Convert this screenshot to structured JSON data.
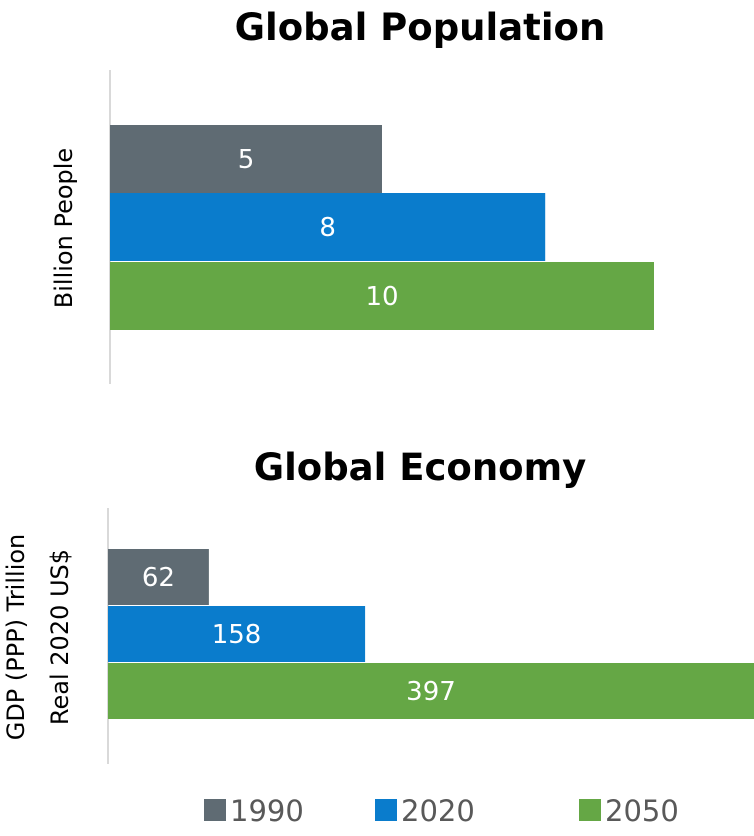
{
  "legend": {
    "items": [
      {
        "label": "1990",
        "color": "#5f6b73"
      },
      {
        "label": "2020",
        "color": "#0a7ccc"
      },
      {
        "label": "2050",
        "color": "#65a745"
      }
    ]
  },
  "chart_data": [
    {
      "type": "bar",
      "orientation": "horizontal",
      "title": "Global Population",
      "ylabel": "Billion People",
      "ylabel_lines": [
        "Billion People"
      ],
      "series": [
        {
          "name": "1990",
          "values": [
            5
          ],
          "color": "#5f6b73"
        },
        {
          "name": "2020",
          "values": [
            8
          ],
          "color": "#0a7ccc"
        },
        {
          "name": "2050",
          "values": [
            10
          ],
          "color": "#65a745"
        }
      ],
      "xlim": [
        0,
        10.43
      ],
      "grid": false,
      "legend": "bottom"
    },
    {
      "type": "bar",
      "orientation": "horizontal",
      "title": "Global Economy",
      "ylabel": "GDP (PPP) Trillion Real 2020 US$",
      "ylabel_lines": [
        "GDP (PPP) Trillion",
        "Real 2020 US$"
      ],
      "series": [
        {
          "name": "1990",
          "values": [
            62
          ],
          "color": "#5f6b73"
        },
        {
          "name": "2020",
          "values": [
            158
          ],
          "color": "#0a7ccc"
        },
        {
          "name": "2050",
          "values": [
            397
          ],
          "color": "#65a745"
        }
      ],
      "xlim": [
        0,
        396
      ],
      "grid": false,
      "legend": "bottom"
    }
  ]
}
